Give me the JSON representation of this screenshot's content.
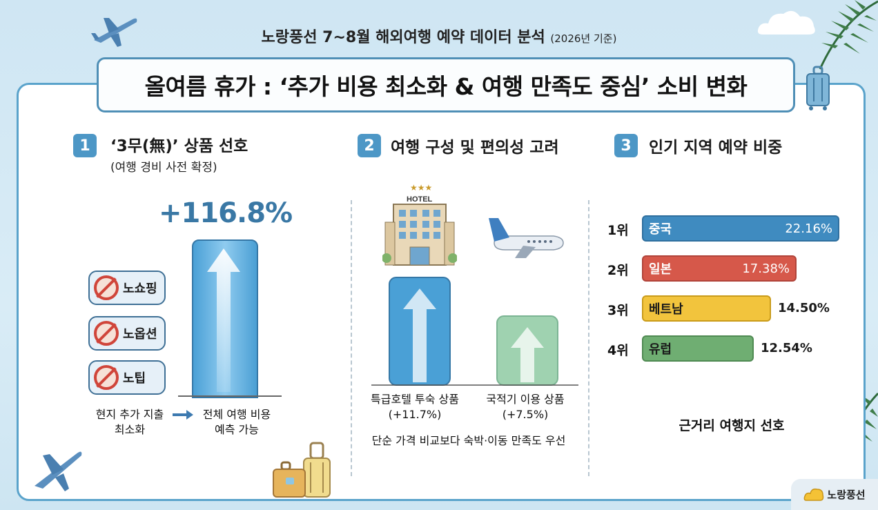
{
  "header": {
    "top_title": "노랑풍선 7~8월 해외여행 예약 데이터 분석",
    "top_year": "(2026년 기준)",
    "main_title": "올여름 휴가 : ‘추가 비용 최소화 & 여행 만족도 중심’ 소비 변화"
  },
  "section1": {
    "num": "1",
    "title": "‘3무(無)’ 상품 선호",
    "subtitle": "(여행 경비 사전 확정)",
    "stat": "+116.8%",
    "items": [
      {
        "label": "노쇼핑",
        "icon": "no-shopping-bag-icon"
      },
      {
        "label": "노옵션",
        "icon": "no-option-ticket-icon"
      },
      {
        "label": "노팁",
        "icon": "no-tip-bell-icon"
      }
    ],
    "caption_left": [
      "현지 추가 지출",
      "최소화"
    ],
    "caption_right": [
      "전체 여행 비용",
      "예측 가능"
    ]
  },
  "section2": {
    "num": "2",
    "title": "여행 구성 및 편의성 고려",
    "hotel_sign": "HOTEL",
    "bars": [
      {
        "label": "특급호텔 투숙 상품",
        "value_text": "(+11.7%)",
        "value": 11.7,
        "color": "#4aa0d6"
      },
      {
        "label": "국적기 이용 상품",
        "value_text": "(+7.5%)",
        "value": 7.5,
        "color": "#9fd2b0"
      }
    ],
    "footer": "단순 가격 비교보다 숙박·이동 만족도 우선"
  },
  "section3": {
    "num": "3",
    "title": "인기 지역 예약 비중",
    "footer": "근거리 여행지 선호"
  },
  "chart_data": {
    "type": "bar",
    "orientation": "horizontal",
    "title": "인기 지역 예약 비중",
    "ranks": [
      "1위",
      "2위",
      "3위",
      "4위"
    ],
    "categories": [
      "중국",
      "일본",
      "베트남",
      "유럽"
    ],
    "values": [
      22.16,
      17.38,
      14.5,
      12.54
    ],
    "value_labels": [
      "22.16%",
      "17.38%",
      "14.50%",
      "12.54%"
    ],
    "colors": [
      "#3f8bc0",
      "#d6584a",
      "#f2c43d",
      "#6fae72"
    ]
  },
  "brand": {
    "name": "노랑풍선"
  }
}
